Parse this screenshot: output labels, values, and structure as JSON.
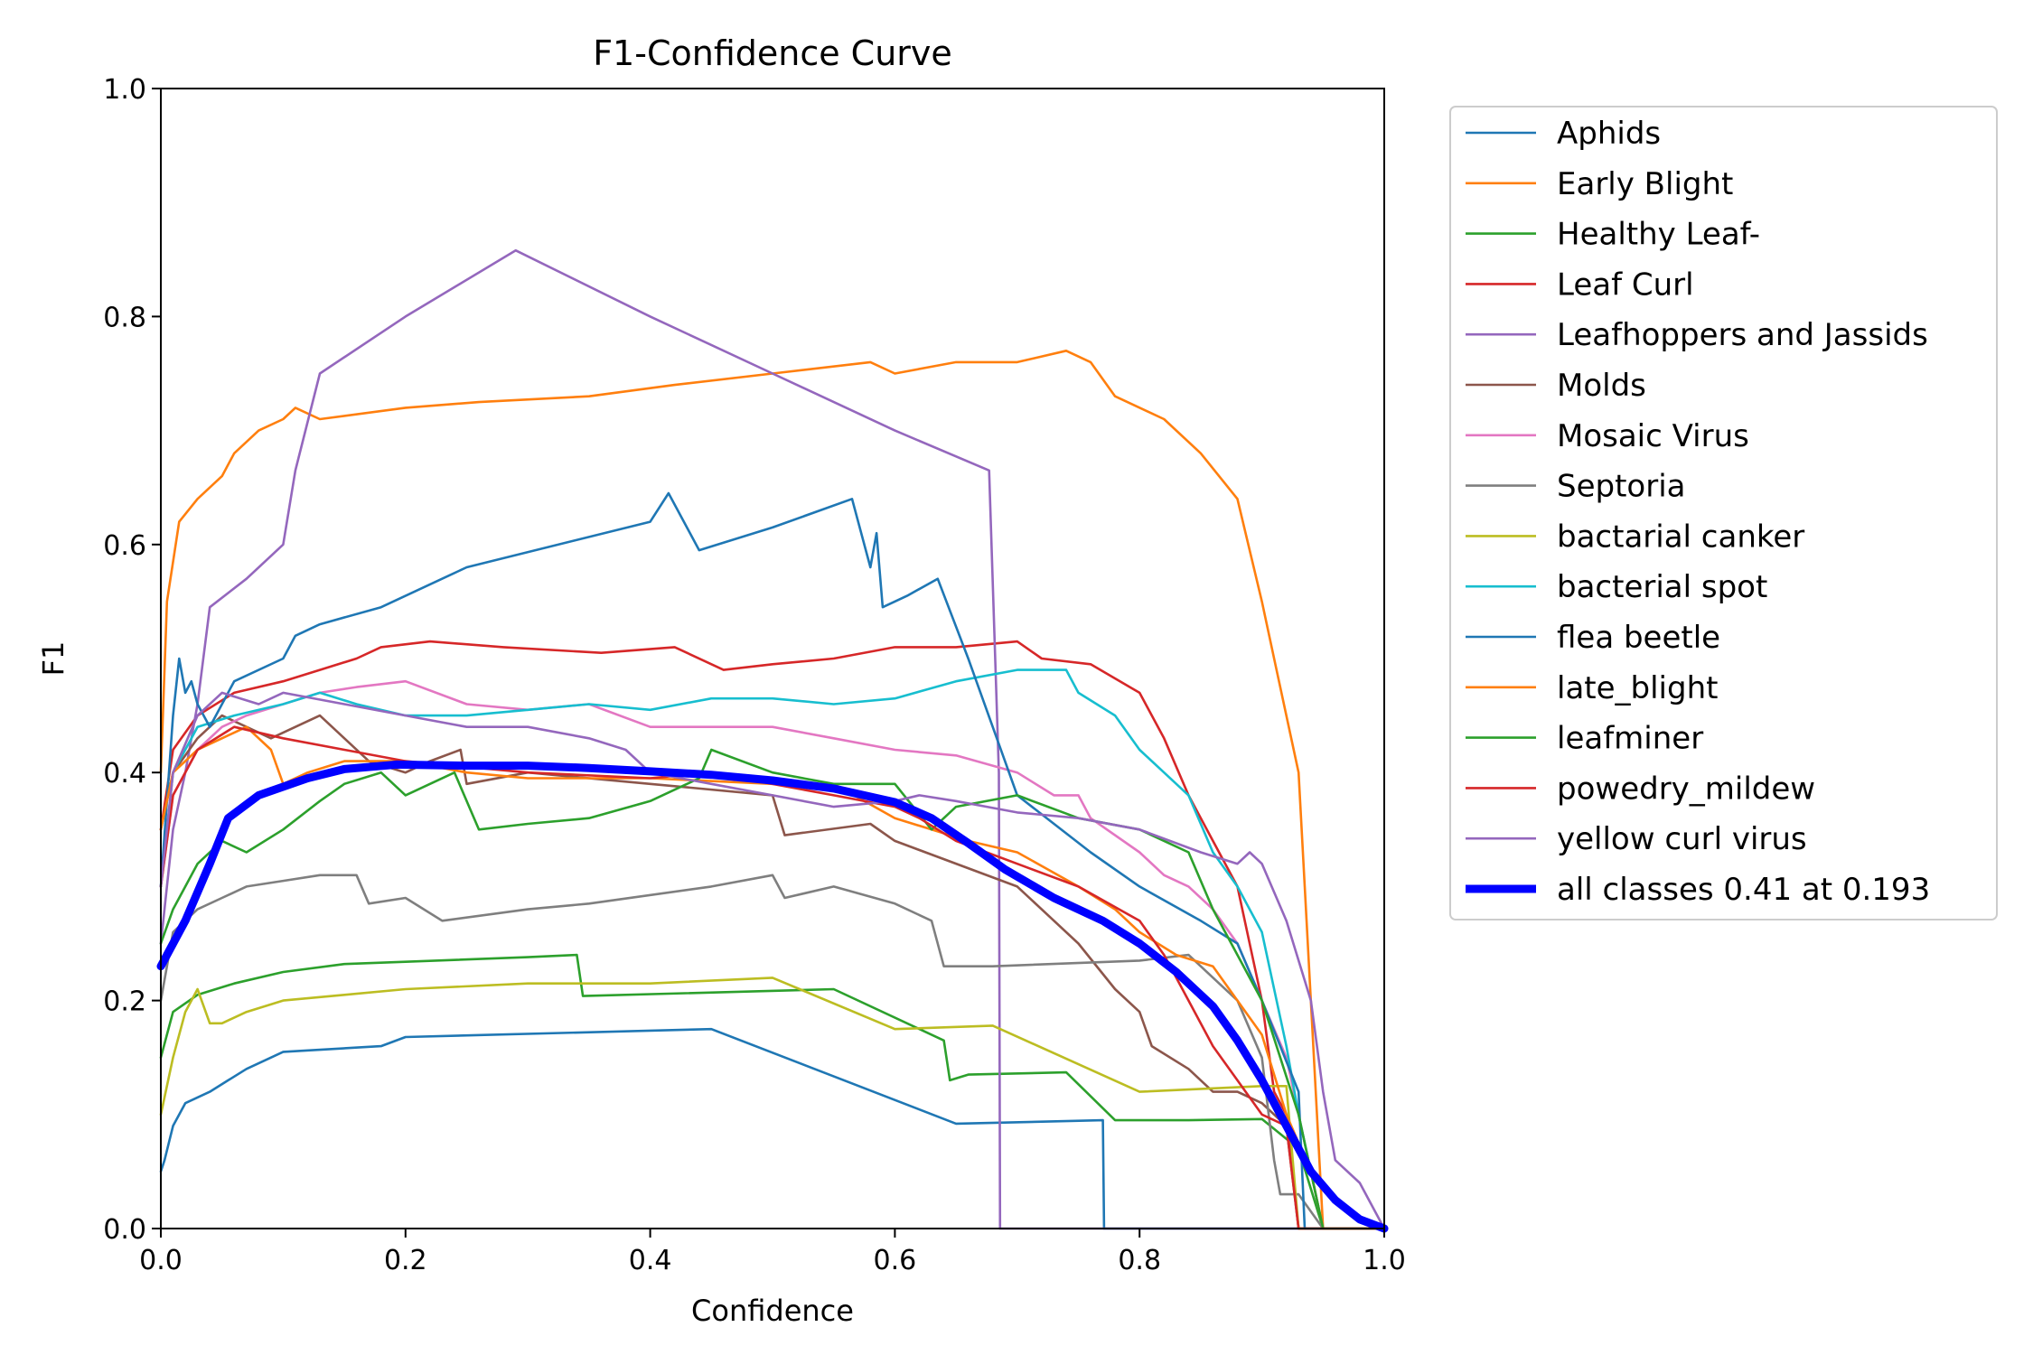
{
  "chart_data": {
    "type": "line",
    "title": "F1-Confidence Curve",
    "xlabel": "Confidence",
    "ylabel": "F1",
    "xlim": [
      0.0,
      1.0
    ],
    "ylim": [
      0.0,
      1.0
    ],
    "xticks": [
      "0.0",
      "0.2",
      "0.4",
      "0.6",
      "0.8",
      "1.0"
    ],
    "yticks": [
      "0.0",
      "0.2",
      "0.4",
      "0.6",
      "0.8",
      "1.0"
    ],
    "grid": false,
    "legend_position": "outside-right",
    "series": [
      {
        "name": "Aphids",
        "color": "#1f77b4",
        "x": [
          0.0,
          0.003,
          0.01,
          0.02,
          0.04,
          0.055,
          0.07,
          0.1,
          0.18,
          0.2,
          0.45,
          0.65,
          0.77,
          0.771,
          1.0
        ],
        "y": [
          0.05,
          0.06,
          0.09,
          0.11,
          0.12,
          0.13,
          0.14,
          0.155,
          0.16,
          0.168,
          0.175,
          0.092,
          0.095,
          0.0,
          0.0
        ]
      },
      {
        "name": "Early Blight",
        "color": "#ff7f0e",
        "x": [
          0.0,
          0.005,
          0.015,
          0.03,
          0.05,
          0.06,
          0.08,
          0.1,
          0.11,
          0.13,
          0.2,
          0.26,
          0.35,
          0.42,
          0.5,
          0.58,
          0.6,
          0.65,
          0.7,
          0.74,
          0.76,
          0.78,
          0.82,
          0.85,
          0.88,
          0.9,
          0.91,
          0.93,
          0.935,
          0.95,
          1.0
        ],
        "y": [
          0.4,
          0.55,
          0.62,
          0.64,
          0.66,
          0.68,
          0.7,
          0.71,
          0.72,
          0.71,
          0.72,
          0.725,
          0.73,
          0.74,
          0.75,
          0.76,
          0.75,
          0.76,
          0.76,
          0.77,
          0.76,
          0.73,
          0.71,
          0.68,
          0.64,
          0.55,
          0.5,
          0.4,
          0.3,
          0.0,
          0.0
        ]
      },
      {
        "name": "Healthy Leaf-",
        "color": "#2ca02c",
        "x": [
          0.0,
          0.01,
          0.03,
          0.06,
          0.1,
          0.15,
          0.2,
          0.3,
          0.34,
          0.345,
          0.55,
          0.64,
          0.645,
          0.66,
          0.74,
          0.78,
          0.84,
          0.9,
          0.93,
          0.95,
          1.0
        ],
        "y": [
          0.15,
          0.19,
          0.205,
          0.215,
          0.225,
          0.232,
          0.234,
          0.238,
          0.24,
          0.204,
          0.21,
          0.165,
          0.13,
          0.135,
          0.137,
          0.095,
          0.095,
          0.096,
          0.07,
          0.0,
          0.0
        ]
      },
      {
        "name": "Leaf Curl",
        "color": "#d62728",
        "x": [
          0.0,
          0.01,
          0.03,
          0.06,
          0.1,
          0.13,
          0.16,
          0.18,
          0.22,
          0.28,
          0.36,
          0.42,
          0.46,
          0.5,
          0.55,
          0.6,
          0.65,
          0.7,
          0.72,
          0.76,
          0.8,
          0.82,
          0.84,
          0.86,
          0.88,
          0.9,
          0.91,
          0.92,
          0.93,
          1.0
        ],
        "y": [
          0.35,
          0.42,
          0.45,
          0.47,
          0.48,
          0.49,
          0.5,
          0.51,
          0.515,
          0.51,
          0.505,
          0.51,
          0.49,
          0.495,
          0.5,
          0.51,
          0.51,
          0.515,
          0.5,
          0.495,
          0.47,
          0.43,
          0.38,
          0.34,
          0.3,
          0.2,
          0.12,
          0.1,
          0.0,
          0.0
        ]
      },
      {
        "name": "Leafhoppers and Jassids",
        "color": "#9467bd",
        "x": [
          0.0,
          0.01,
          0.02,
          0.03,
          0.04,
          0.07,
          0.1,
          0.11,
          0.13,
          0.2,
          0.29,
          0.4,
          0.5,
          0.6,
          0.677,
          0.685,
          0.686,
          1.0
        ],
        "y": [
          0.25,
          0.35,
          0.4,
          0.46,
          0.545,
          0.57,
          0.6,
          0.665,
          0.75,
          0.8,
          0.858,
          0.8,
          0.75,
          0.7,
          0.665,
          0.4,
          0.0,
          0.0
        ]
      },
      {
        "name": "Molds",
        "color": "#8c564b",
        "x": [
          0.0,
          0.01,
          0.03,
          0.05,
          0.07,
          0.09,
          0.11,
          0.13,
          0.15,
          0.17,
          0.2,
          0.22,
          0.245,
          0.25,
          0.3,
          0.4,
          0.5,
          0.51,
          0.58,
          0.6,
          0.7,
          0.75,
          0.78,
          0.8,
          0.81,
          0.84,
          0.86,
          0.88,
          0.9,
          0.92,
          0.93,
          1.0
        ],
        "y": [
          0.35,
          0.4,
          0.43,
          0.45,
          0.44,
          0.43,
          0.44,
          0.45,
          0.43,
          0.41,
          0.4,
          0.41,
          0.42,
          0.39,
          0.4,
          0.39,
          0.38,
          0.345,
          0.355,
          0.34,
          0.3,
          0.25,
          0.21,
          0.19,
          0.16,
          0.14,
          0.12,
          0.12,
          0.11,
          0.09,
          0.0,
          0.0
        ]
      },
      {
        "name": "Mosaic Virus",
        "color": "#e377c2",
        "x": [
          0.0,
          0.01,
          0.03,
          0.05,
          0.07,
          0.1,
          0.13,
          0.16,
          0.2,
          0.25,
          0.3,
          0.35,
          0.4,
          0.45,
          0.5,
          0.55,
          0.6,
          0.65,
          0.7,
          0.73,
          0.75,
          0.76,
          0.8,
          0.82,
          0.84,
          0.86,
          0.88,
          0.9,
          0.92,
          0.93,
          0.95,
          1.0
        ],
        "y": [
          0.3,
          0.38,
          0.42,
          0.44,
          0.45,
          0.46,
          0.47,
          0.475,
          0.48,
          0.46,
          0.455,
          0.46,
          0.44,
          0.44,
          0.44,
          0.43,
          0.42,
          0.415,
          0.4,
          0.38,
          0.38,
          0.36,
          0.33,
          0.31,
          0.3,
          0.28,
          0.25,
          0.2,
          0.15,
          0.1,
          0.0,
          0.0
        ]
      },
      {
        "name": "Septoria",
        "color": "#7f7f7f",
        "x": [
          0.0,
          0.01,
          0.03,
          0.05,
          0.07,
          0.1,
          0.13,
          0.16,
          0.17,
          0.2,
          0.23,
          0.3,
          0.35,
          0.45,
          0.5,
          0.51,
          0.55,
          0.6,
          0.63,
          0.64,
          0.68,
          0.8,
          0.84,
          0.88,
          0.9,
          0.91,
          0.915,
          0.93,
          0.95,
          1.0
        ],
        "y": [
          0.2,
          0.26,
          0.28,
          0.29,
          0.3,
          0.305,
          0.31,
          0.31,
          0.285,
          0.29,
          0.27,
          0.28,
          0.285,
          0.3,
          0.31,
          0.29,
          0.3,
          0.285,
          0.27,
          0.23,
          0.23,
          0.235,
          0.24,
          0.2,
          0.15,
          0.06,
          0.03,
          0.03,
          0.0,
          0.0
        ]
      },
      {
        "name": "bactarial canker",
        "color": "#bcbd22",
        "x": [
          0.0,
          0.01,
          0.02,
          0.03,
          0.04,
          0.05,
          0.07,
          0.1,
          0.15,
          0.2,
          0.3,
          0.4,
          0.5,
          0.6,
          0.68,
          0.8,
          0.9,
          0.92,
          0.93,
          1.0
        ],
        "y": [
          0.1,
          0.15,
          0.19,
          0.21,
          0.18,
          0.18,
          0.19,
          0.2,
          0.205,
          0.21,
          0.215,
          0.215,
          0.22,
          0.175,
          0.178,
          0.12,
          0.125,
          0.125,
          0.0,
          0.0
        ]
      },
      {
        "name": "bacterial spot",
        "color": "#17becf",
        "x": [
          0.0,
          0.01,
          0.03,
          0.06,
          0.1,
          0.13,
          0.16,
          0.2,
          0.25,
          0.3,
          0.35,
          0.4,
          0.45,
          0.5,
          0.55,
          0.6,
          0.65,
          0.7,
          0.74,
          0.75,
          0.78,
          0.8,
          0.82,
          0.84,
          0.86,
          0.88,
          0.9,
          0.92,
          0.93,
          0.95,
          1.0
        ],
        "y": [
          0.3,
          0.4,
          0.44,
          0.45,
          0.46,
          0.47,
          0.46,
          0.45,
          0.45,
          0.455,
          0.46,
          0.455,
          0.465,
          0.465,
          0.46,
          0.465,
          0.48,
          0.49,
          0.49,
          0.47,
          0.45,
          0.42,
          0.4,
          0.38,
          0.33,
          0.3,
          0.26,
          0.16,
          0.1,
          0.0,
          0.0
        ]
      },
      {
        "name": "flea beetle",
        "color": "#1f77b4",
        "x": [
          0.0,
          0.01,
          0.015,
          0.02,
          0.025,
          0.03,
          0.04,
          0.06,
          0.1,
          0.11,
          0.13,
          0.18,
          0.25,
          0.4,
          0.415,
          0.44,
          0.5,
          0.565,
          0.58,
          0.585,
          0.59,
          0.61,
          0.635,
          0.66,
          0.7,
          0.76,
          0.8,
          0.85,
          0.88,
          0.9,
          0.93,
          0.935,
          1.0
        ],
        "y": [
          0.3,
          0.45,
          0.5,
          0.47,
          0.48,
          0.46,
          0.44,
          0.48,
          0.5,
          0.52,
          0.53,
          0.545,
          0.58,
          0.62,
          0.645,
          0.595,
          0.615,
          0.64,
          0.58,
          0.61,
          0.545,
          0.555,
          0.57,
          0.5,
          0.38,
          0.33,
          0.3,
          0.27,
          0.25,
          0.2,
          0.12,
          0.0,
          0.0
        ]
      },
      {
        "name": "late_blight",
        "color": "#ff7f0e",
        "x": [
          0.0,
          0.01,
          0.03,
          0.05,
          0.07,
          0.09,
          0.1,
          0.12,
          0.15,
          0.2,
          0.25,
          0.3,
          0.4,
          0.5,
          0.55,
          0.6,
          0.63,
          0.66,
          0.7,
          0.75,
          0.78,
          0.8,
          0.83,
          0.86,
          0.88,
          0.9,
          0.92,
          0.94,
          0.95,
          1.0
        ],
        "y": [
          0.35,
          0.4,
          0.42,
          0.43,
          0.44,
          0.42,
          0.39,
          0.4,
          0.41,
          0.41,
          0.4,
          0.395,
          0.395,
          0.39,
          0.39,
          0.36,
          0.35,
          0.34,
          0.33,
          0.3,
          0.28,
          0.26,
          0.24,
          0.23,
          0.2,
          0.17,
          0.1,
          0.05,
          0.0,
          0.0
        ]
      },
      {
        "name": "leafminer",
        "color": "#2ca02c",
        "x": [
          0.0,
          0.01,
          0.02,
          0.03,
          0.05,
          0.07,
          0.1,
          0.13,
          0.15,
          0.18,
          0.2,
          0.22,
          0.24,
          0.26,
          0.3,
          0.35,
          0.4,
          0.44,
          0.45,
          0.5,
          0.55,
          0.6,
          0.63,
          0.65,
          0.7,
          0.75,
          0.8,
          0.82,
          0.84,
          0.86,
          0.88,
          0.9,
          0.93,
          0.95,
          1.0
        ],
        "y": [
          0.25,
          0.28,
          0.3,
          0.32,
          0.34,
          0.33,
          0.35,
          0.375,
          0.39,
          0.4,
          0.38,
          0.39,
          0.4,
          0.35,
          0.355,
          0.36,
          0.375,
          0.395,
          0.42,
          0.4,
          0.39,
          0.39,
          0.35,
          0.37,
          0.38,
          0.36,
          0.35,
          0.34,
          0.33,
          0.28,
          0.24,
          0.2,
          0.1,
          0.0,
          0.0
        ]
      },
      {
        "name": "powedry_mildew",
        "color": "#d62728",
        "x": [
          0.0,
          0.01,
          0.03,
          0.06,
          0.1,
          0.15,
          0.2,
          0.25,
          0.3,
          0.4,
          0.45,
          0.5,
          0.55,
          0.6,
          0.62,
          0.65,
          0.7,
          0.75,
          0.8,
          0.82,
          0.84,
          0.86,
          0.88,
          0.9,
          0.92,
          0.93,
          1.0
        ],
        "y": [
          0.3,
          0.38,
          0.42,
          0.44,
          0.43,
          0.42,
          0.41,
          0.405,
          0.4,
          0.395,
          0.4,
          0.39,
          0.38,
          0.37,
          0.36,
          0.34,
          0.32,
          0.3,
          0.27,
          0.24,
          0.2,
          0.16,
          0.13,
          0.1,
          0.09,
          0.0,
          0.0
        ]
      },
      {
        "name": "yellow curl virus",
        "color": "#9467bd",
        "x": [
          0.0,
          0.01,
          0.03,
          0.05,
          0.08,
          0.1,
          0.15,
          0.2,
          0.25,
          0.3,
          0.35,
          0.38,
          0.4,
          0.45,
          0.5,
          0.55,
          0.6,
          0.62,
          0.65,
          0.7,
          0.75,
          0.8,
          0.85,
          0.88,
          0.89,
          0.9,
          0.92,
          0.94,
          0.95,
          0.96,
          0.98,
          1.0
        ],
        "y": [
          0.3,
          0.4,
          0.45,
          0.47,
          0.46,
          0.47,
          0.46,
          0.45,
          0.44,
          0.44,
          0.43,
          0.42,
          0.4,
          0.39,
          0.38,
          0.37,
          0.375,
          0.38,
          0.375,
          0.365,
          0.36,
          0.35,
          0.33,
          0.32,
          0.33,
          0.32,
          0.27,
          0.2,
          0.12,
          0.06,
          0.04,
          0.0
        ]
      },
      {
        "name": "all classes 0.41 at 0.193",
        "color": "#0000ff",
        "bold": true,
        "x": [
          0.0,
          0.02,
          0.04,
          0.055,
          0.08,
          0.12,
          0.15,
          0.193,
          0.25,
          0.3,
          0.35,
          0.4,
          0.45,
          0.5,
          0.55,
          0.6,
          0.63,
          0.66,
          0.69,
          0.73,
          0.77,
          0.8,
          0.83,
          0.86,
          0.88,
          0.9,
          0.92,
          0.94,
          0.96,
          0.98,
          1.0
        ],
        "y": [
          0.23,
          0.27,
          0.32,
          0.36,
          0.38,
          0.395,
          0.403,
          0.407,
          0.406,
          0.406,
          0.404,
          0.401,
          0.398,
          0.393,
          0.386,
          0.374,
          0.36,
          0.338,
          0.315,
          0.29,
          0.27,
          0.25,
          0.225,
          0.195,
          0.165,
          0.13,
          0.09,
          0.05,
          0.025,
          0.008,
          0.0
        ]
      }
    ]
  }
}
